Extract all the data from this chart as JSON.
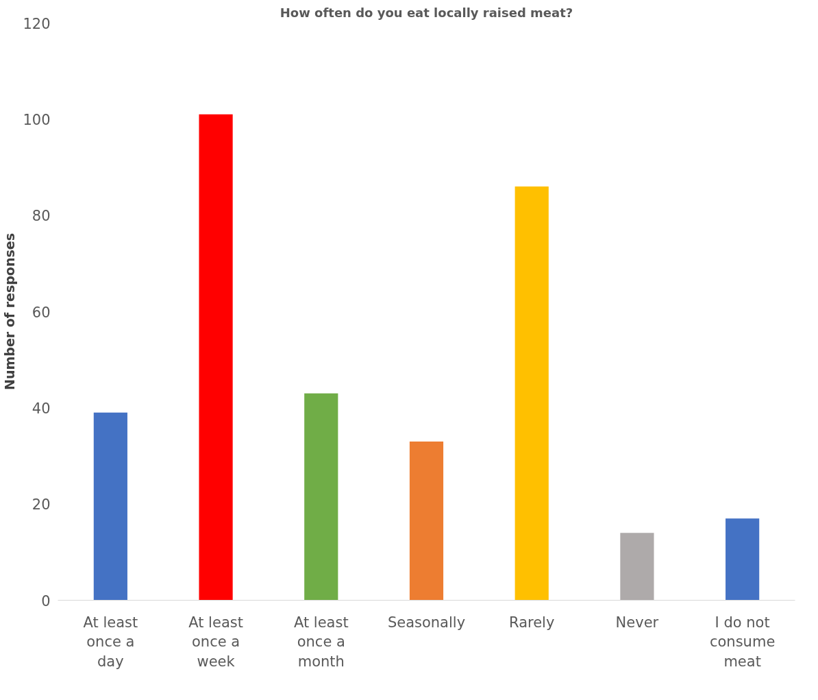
{
  "chart_data": {
    "type": "bar",
    "title": "How often do you eat locally raised meat?",
    "ylabel": "Number of responses",
    "categories": [
      "At least once a day",
      "At least once a week",
      "At least once a month",
      "Seasonally",
      "Rarely",
      "Never",
      "I do not consume meat"
    ],
    "values": [
      39,
      101,
      43,
      33,
      86,
      14,
      17
    ],
    "colors": [
      "#4472c4",
      "#ff0000",
      "#70ad47",
      "#ed7d31",
      "#ffc000",
      "#aeaaaa",
      "#4472c4"
    ],
    "ylim": [
      0,
      120
    ],
    "yticks": [
      0,
      20,
      40,
      60,
      80,
      100,
      120
    ],
    "grid": false
  }
}
